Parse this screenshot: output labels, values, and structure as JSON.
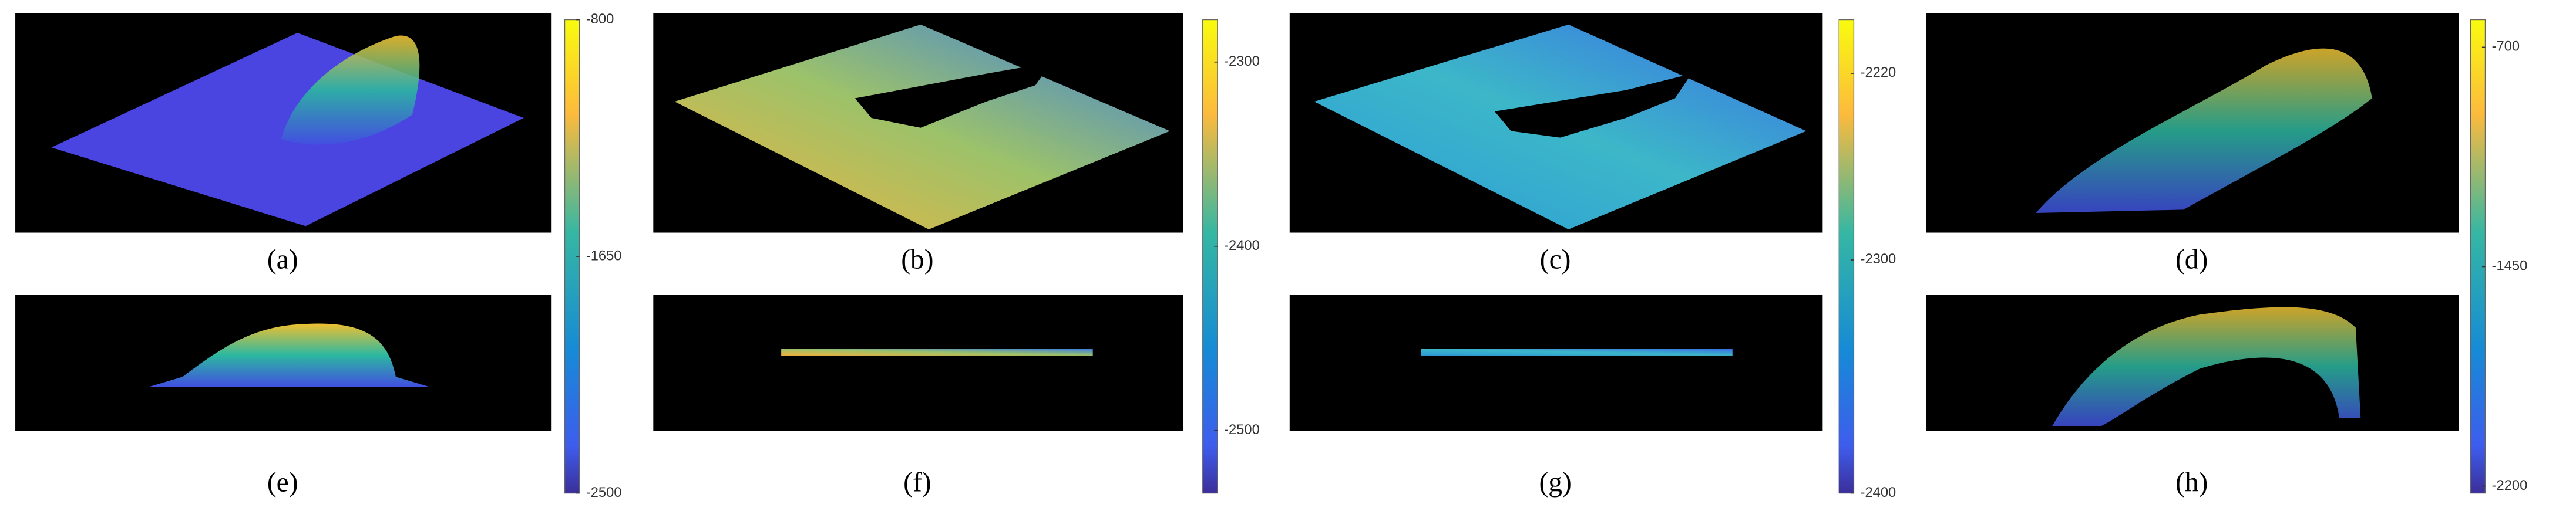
{
  "panels": [
    {
      "label": "(a)"
    },
    {
      "label": "(b)"
    },
    {
      "label": "(c)"
    },
    {
      "label": "(d)"
    },
    {
      "label": "(e)"
    },
    {
      "label": "(f)"
    },
    {
      "label": "(g)"
    },
    {
      "label": "(h)"
    }
  ],
  "colorbars": [
    {
      "lim": [
        -2500,
        -800
      ],
      "ticks": [
        -800,
        -1650,
        -2500
      ]
    },
    {
      "lim": [
        -2534,
        -2277
      ],
      "ticks": [
        -2300,
        -2400,
        -2500
      ]
    },
    {
      "lim": [
        -2400,
        -2197
      ],
      "ticks": [
        -2220,
        -2300,
        -2400
      ]
    },
    {
      "lim": [
        -2224,
        -606
      ],
      "ticks": [
        -700,
        -1450,
        -2200
      ]
    }
  ]
}
